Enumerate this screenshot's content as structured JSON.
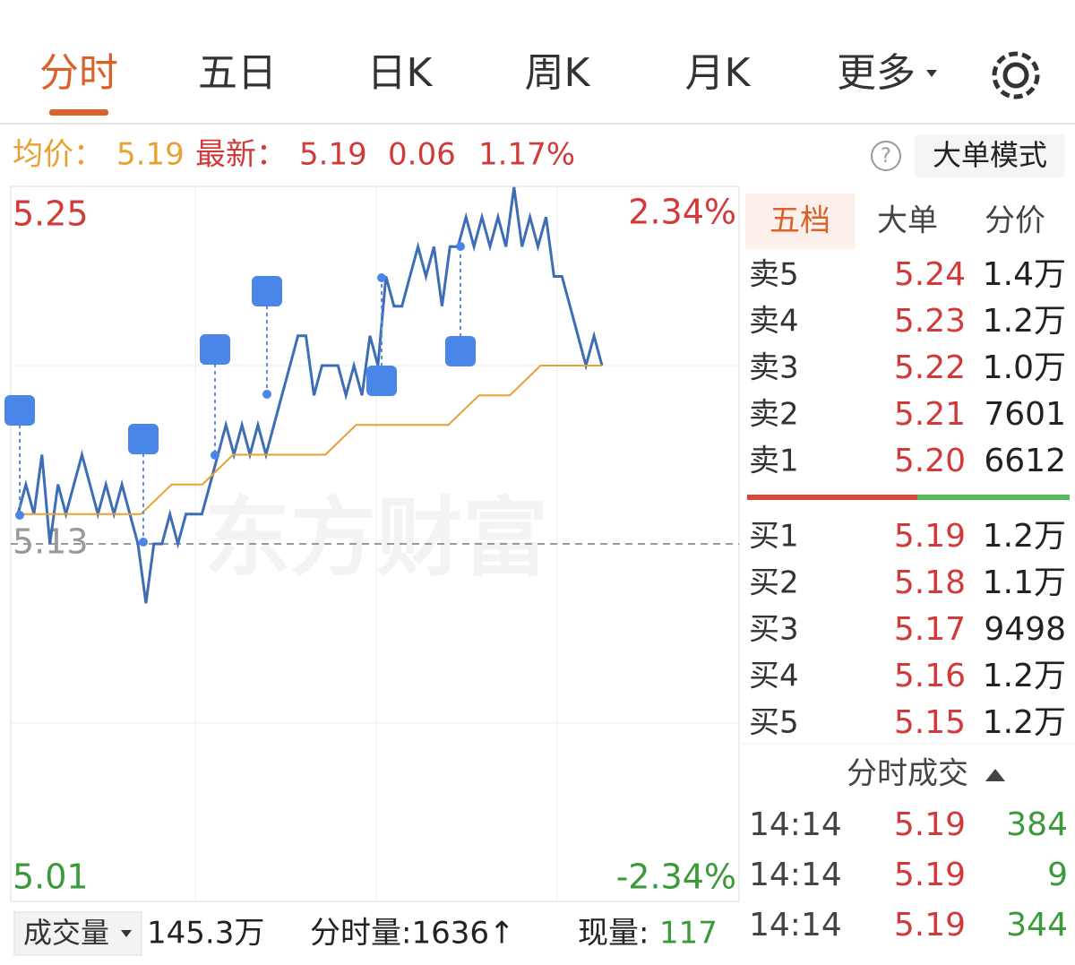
{
  "tabs": [
    "分时",
    "五日",
    "日K",
    "周K",
    "月K",
    "更多"
  ],
  "info": {
    "avg_label": "均价：",
    "avg": "5.19",
    "last_label": "最新：",
    "last": "5.19",
    "change": "0.06",
    "change_pct": "1.17%",
    "help": "?",
    "mode_button": "大单模式"
  },
  "chart_data": {
    "type": "line",
    "watermark": "东方财富",
    "ylim": [
      5.01,
      5.25
    ],
    "yticks": [
      5.25,
      5.13,
      5.01
    ],
    "y2lim": [
      -2.34,
      2.34
    ],
    "y2ticks": [
      {
        "value": 2.34,
        "label": "2.34%"
      },
      {
        "value": -2.34,
        "label": "-2.34%"
      }
    ],
    "series": [
      {
        "color": "#3d6eb5",
        "values": [
          5.14,
          5.15,
          5.14,
          5.16,
          5.13,
          5.15,
          5.14,
          5.15,
          5.16,
          5.15,
          5.14,
          5.15,
          5.14,
          5.15,
          5.14,
          5.13,
          5.11,
          5.13,
          5.13,
          5.14,
          5.13,
          5.14,
          5.14,
          5.14,
          5.15,
          5.16,
          5.17,
          5.16,
          5.17,
          5.16,
          5.17,
          5.16,
          5.17,
          5.18,
          5.19,
          5.2,
          5.2,
          5.18,
          5.19,
          5.19,
          5.19,
          5.18,
          5.19,
          5.18,
          5.2,
          5.19,
          5.22,
          5.21,
          5.21,
          5.22,
          5.23,
          5.22,
          5.23,
          5.21,
          5.23,
          5.23,
          5.24,
          5.23,
          5.24,
          5.23,
          5.24,
          5.23,
          5.25,
          5.23,
          5.24,
          5.23,
          5.24,
          5.22,
          5.22,
          5.21,
          5.2,
          5.19,
          5.2,
          5.19
        ]
      },
      {
        "color": "#e8a030",
        "values": [
          5.14,
          5.14,
          5.14,
          5.14,
          5.14,
          5.15,
          5.15,
          5.16,
          5.16,
          5.16,
          5.16,
          5.17,
          5.17,
          5.17,
          5.17,
          5.18,
          5.18,
          5.19,
          5.19,
          5.19
        ]
      }
    ]
  },
  "book": {
    "tabs": [
      "五档",
      "大单",
      "分价"
    ],
    "sell": [
      [
        "卖5",
        "5.24",
        "1.4万"
      ],
      [
        "卖4",
        "5.23",
        "1.2万"
      ],
      [
        "卖3",
        "5.22",
        "1.0万"
      ],
      [
        "卖2",
        "5.21",
        "7601"
      ],
      [
        "卖1",
        "5.20",
        "6612"
      ]
    ],
    "buy": [
      [
        "买1",
        "5.19",
        "1.2万"
      ],
      [
        "买2",
        "5.18",
        "1.1万"
      ],
      [
        "买3",
        "5.17",
        "9498"
      ],
      [
        "买4",
        "5.16",
        "1.2万"
      ],
      [
        "买5",
        "5.15",
        "1.2万"
      ]
    ]
  },
  "trades": {
    "title": "分时成交",
    "rows": [
      [
        "14:14",
        "5.19",
        "384"
      ],
      [
        "14:14",
        "5.19",
        "9"
      ],
      [
        "14:14",
        "5.19",
        "344"
      ]
    ]
  },
  "volume": {
    "selector": "成交量",
    "total": "145.3万",
    "tick_label": "分时量:1636↑",
    "now_label": "现量:",
    "now": "117"
  }
}
